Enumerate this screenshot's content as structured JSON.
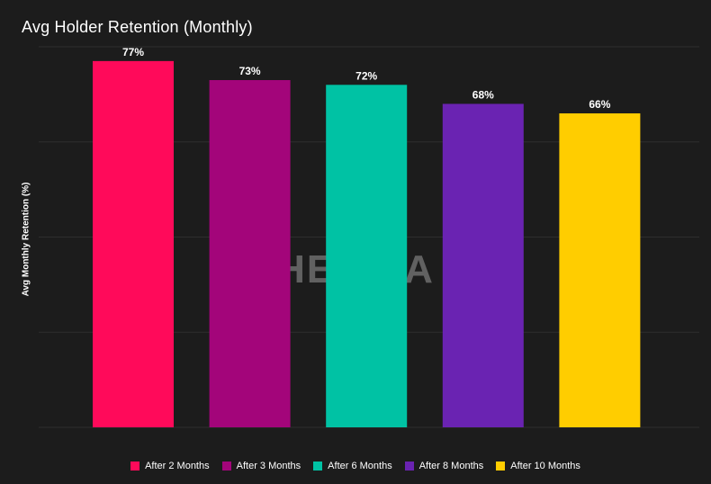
{
  "chart_data": {
    "type": "bar",
    "title": "Avg Holder Retention (Monthly)",
    "xlabel": "",
    "ylabel": "Avg Monthly Retention (%)",
    "ylim": [
      0,
      80
    ],
    "grid": true,
    "legend_position": "bottom",
    "watermark": "HELIKA",
    "categories": [
      "After 2 Months",
      "After 3 Months",
      "After 6 Months",
      "After 8 Months",
      "After 10 Months"
    ],
    "values": [
      77,
      73,
      72,
      68,
      66
    ],
    "data_labels": [
      "77%",
      "73%",
      "72%",
      "68%",
      "66%"
    ],
    "colors": [
      "#ff0a5a",
      "#a3057a",
      "#00c2a4",
      "#6a23b2",
      "#ffcd00"
    ]
  }
}
